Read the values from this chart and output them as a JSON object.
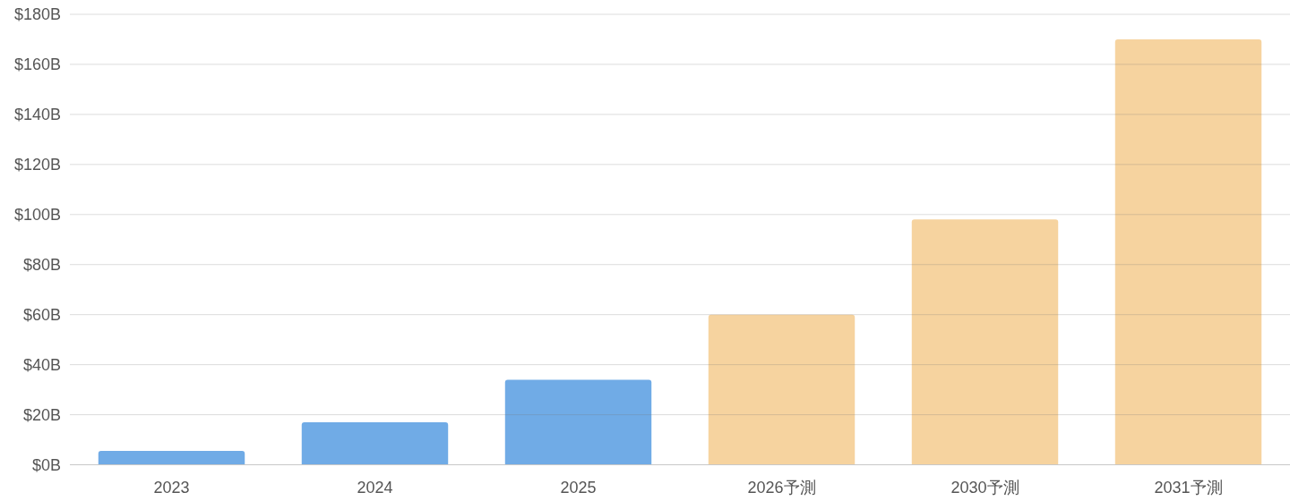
{
  "chart_data": {
    "type": "bar",
    "categories": [
      "2023",
      "2024",
      "2025",
      "2026予測",
      "2030予測",
      "2031予測"
    ],
    "values": [
      5.5,
      17,
      34,
      60,
      98,
      170
    ],
    "colors": [
      "#70abe6",
      "#70abe6",
      "#70abe6",
      "#f6d39f",
      "#f6d39f",
      "#f6d39f"
    ],
    "ylim": [
      0,
      180
    ],
    "yticks": [
      {
        "value": 0,
        "label": "$0B"
      },
      {
        "value": 20,
        "label": "$20B"
      },
      {
        "value": 40,
        "label": "$40B"
      },
      {
        "value": 60,
        "label": "$60B"
      },
      {
        "value": 80,
        "label": "$80B"
      },
      {
        "value": 100,
        "label": "$100B"
      },
      {
        "value": 120,
        "label": "$120B"
      },
      {
        "value": 140,
        "label": "$140B"
      },
      {
        "value": 160,
        "label": "$160B"
      },
      {
        "value": 180,
        "label": "$180B"
      }
    ],
    "grid": "y"
  }
}
